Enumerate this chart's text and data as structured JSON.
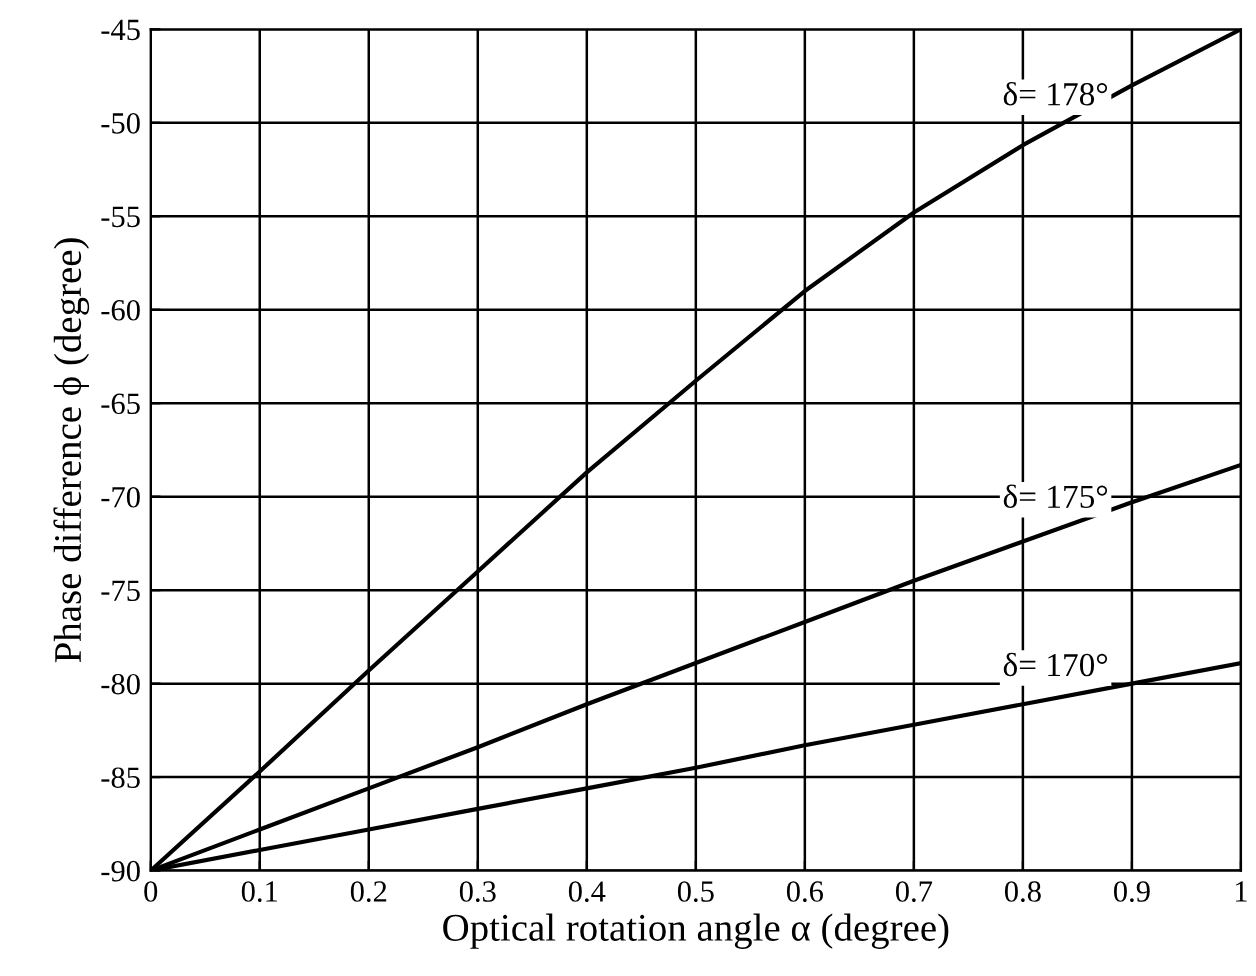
{
  "chart_data": {
    "type": "line",
    "xlabel": "Optical rotation angle α (degree)",
    "ylabel": "Phase difference ϕ (degree)",
    "x": [
      0,
      0.1,
      0.2,
      0.3,
      0.4,
      0.5,
      0.6,
      0.7,
      0.8,
      0.9,
      1.0
    ],
    "series": [
      {
        "name": "δ= 178°",
        "color": "#000000",
        "values": [
          -90,
          -84.7,
          -79.3,
          -74.0,
          -68.7,
          -63.8,
          -59.0,
          -54.8,
          -51.2,
          -48.0,
          -45
        ]
      },
      {
        "name": "δ= 175°",
        "color": "#000000",
        "values": [
          -90,
          -87.8,
          -85.6,
          -83.4,
          -81.1,
          -78.9,
          -76.7,
          -74.5,
          -72.4,
          -70.3,
          -68.3
        ]
      },
      {
        "name": "δ= 170°",
        "color": "#000000",
        "values": [
          -90,
          -88.9,
          -87.8,
          -86.7,
          -85.6,
          -84.5,
          -83.3,
          -82.2,
          -81.1,
          -80.0,
          -78.9
        ]
      }
    ],
    "xlim": [
      0,
      1
    ],
    "xticks": [
      0,
      0.1,
      0.2,
      0.3,
      0.4,
      0.5,
      0.6,
      0.7,
      0.8,
      0.9,
      1
    ],
    "ylim": [
      -90,
      -45
    ],
    "yticks": [
      -90,
      -85,
      -80,
      -75,
      -70,
      -65,
      -60,
      -55,
      -50,
      -45
    ],
    "grid": true,
    "marker": "none",
    "line_style": "solid",
    "legend": false
  }
}
